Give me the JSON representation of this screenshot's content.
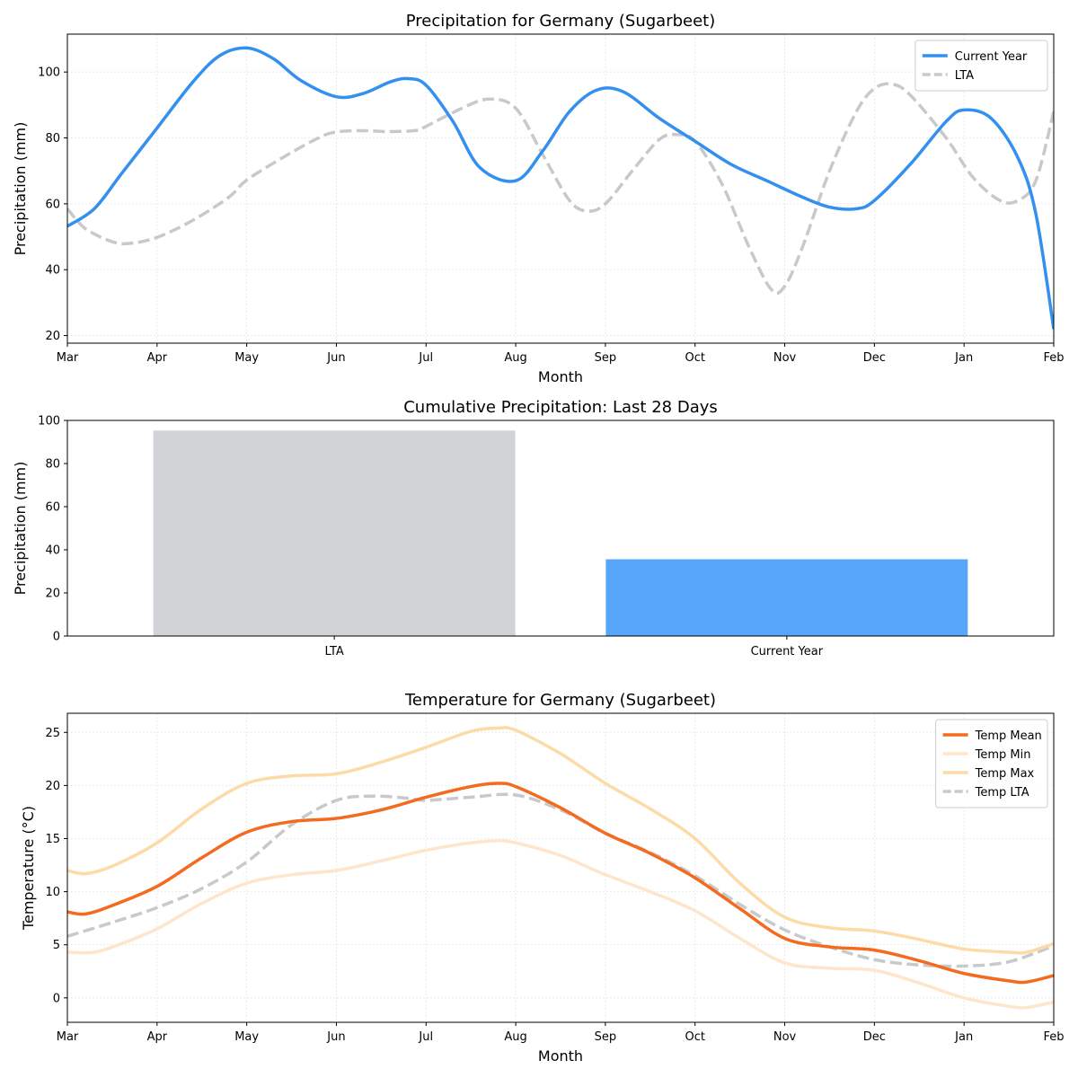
{
  "charts": [
    {
      "type": "line",
      "title": "Precipitation for Germany (Sugarbeet)",
      "xlabel": "Month",
      "ylabel": "Precipitation (mm)",
      "xticks": [
        "Mar",
        "Apr",
        "May",
        "Jun",
        "Jul",
        "Aug",
        "Sep",
        "Oct",
        "Nov",
        "Dec",
        "Jan",
        "Feb"
      ],
      "ylim": [
        17.7,
        111.5
      ],
      "yticks": [
        20,
        40,
        60,
        80,
        100
      ],
      "series": [
        {
          "name": "Current Year",
          "color": "#3390ee",
          "style": "solid",
          "points": [
            [
              0,
              53.2
            ],
            [
              0.3,
              58.5
            ],
            [
              0.6,
              69
            ],
            [
              1,
              83
            ],
            [
              1.4,
              97
            ],
            [
              1.7,
              105
            ],
            [
              2,
              107.3
            ],
            [
              2.3,
              104
            ],
            [
              2.6,
              97.5
            ],
            [
              3,
              92.5
            ],
            [
              3.3,
              93.5
            ],
            [
              3.6,
              97
            ],
            [
              3.8,
              98
            ],
            [
              4,
              96
            ],
            [
              4.3,
              85
            ],
            [
              4.6,
              71
            ],
            [
              5,
              67
            ],
            [
              5.3,
              76
            ],
            [
              5.6,
              88
            ],
            [
              5.9,
              94.5
            ],
            [
              6.2,
              94
            ],
            [
              6.6,
              86
            ],
            [
              7,
              79
            ],
            [
              7.4,
              72
            ],
            [
              7.8,
              67
            ],
            [
              8.2,
              62
            ],
            [
              8.5,
              59
            ],
            [
              8.8,
              58.5
            ],
            [
              9,
              61
            ],
            [
              9.4,
              72
            ],
            [
              9.8,
              85
            ],
            [
              10,
              88.5
            ],
            [
              10.3,
              86
            ],
            [
              10.6,
              74
            ],
            [
              10.8,
              57
            ],
            [
              11,
              22
            ]
          ]
        },
        {
          "name": "LTA",
          "color": "#c8c9ca",
          "style": "dashed",
          "points": [
            [
              0,
              58.5
            ],
            [
              0.2,
              52.5
            ],
            [
              0.5,
              48.5
            ],
            [
              0.7,
              48
            ],
            [
              1,
              49.8
            ],
            [
              1.4,
              55
            ],
            [
              1.8,
              62
            ],
            [
              2,
              67.2
            ],
            [
              2.4,
              74
            ],
            [
              2.8,
              80
            ],
            [
              3,
              81.8
            ],
            [
              3.3,
              82.2
            ],
            [
              3.6,
              81.9
            ],
            [
              3.9,
              82.3
            ],
            [
              4,
              83.5
            ],
            [
              4.4,
              89
            ],
            [
              4.7,
              91.8
            ],
            [
              5,
              89
            ],
            [
              5.3,
              75
            ],
            [
              5.6,
              61
            ],
            [
              5.8,
              57.8
            ],
            [
              6,
              60
            ],
            [
              6.3,
              70
            ],
            [
              6.6,
              79.5
            ],
            [
              6.8,
              81
            ],
            [
              7,
              79
            ],
            [
              7.3,
              66
            ],
            [
              7.6,
              47
            ],
            [
              7.85,
              34
            ],
            [
              8,
              35
            ],
            [
              8.2,
              47
            ],
            [
              8.5,
              70
            ],
            [
              8.8,
              88
            ],
            [
              9,
              95
            ],
            [
              9.2,
              96.3
            ],
            [
              9.4,
              93
            ],
            [
              9.8,
              80
            ],
            [
              10.1,
              68
            ],
            [
              10.4,
              61
            ],
            [
              10.6,
              61
            ],
            [
              10.8,
              67
            ],
            [
              11,
              88
            ]
          ]
        }
      ],
      "legend": {
        "position": "upper-right",
        "entries": [
          "Current Year",
          "LTA"
        ]
      }
    },
    {
      "type": "bar",
      "title": "Cumulative Precipitation: Last 28 Days",
      "xlabel": "",
      "ylabel": "Precipitation (mm)",
      "categories": [
        "LTA",
        "Current Year"
      ],
      "values": [
        95.3,
        35.6
      ],
      "colors": [
        "#d0d4d7",
        "#58a6f9"
      ],
      "ylim": [
        0,
        100
      ],
      "yticks": [
        0,
        20,
        40,
        60,
        80,
        100
      ]
    },
    {
      "type": "line",
      "title": "Temperature for Germany (Sugarbeet)",
      "xlabel": "Month",
      "ylabel": "Temperature (°C)",
      "xticks": [
        "Mar",
        "Apr",
        "May",
        "Jun",
        "Jul",
        "Aug",
        "Sep",
        "Oct",
        "Nov",
        "Dec",
        "Jan",
        "Feb"
      ],
      "ylim": [
        -2.3,
        26.8
      ],
      "yticks": [
        0,
        5,
        10,
        15,
        20,
        25
      ],
      "series": [
        {
          "name": "Temp Mean",
          "color": "#f46a1f",
          "style": "solid",
          "points": [
            [
              0,
              8.1
            ],
            [
              0.2,
              7.9
            ],
            [
              0.5,
              8.7
            ],
            [
              1,
              10.5
            ],
            [
              1.5,
              13.2
            ],
            [
              2,
              15.6
            ],
            [
              2.5,
              16.6
            ],
            [
              3,
              16.9
            ],
            [
              3.5,
              17.7
            ],
            [
              4,
              18.9
            ],
            [
              4.5,
              19.9
            ],
            [
              4.8,
              20.2
            ],
            [
              5,
              19.9
            ],
            [
              5.5,
              17.9
            ],
            [
              6,
              15.5
            ],
            [
              6.5,
              13.6
            ],
            [
              7,
              11.3
            ],
            [
              7.5,
              8.4
            ],
            [
              8,
              5.6
            ],
            [
              8.5,
              4.8
            ],
            [
              9,
              4.5
            ],
            [
              9.5,
              3.5
            ],
            [
              10,
              2.3
            ],
            [
              10.5,
              1.6
            ],
            [
              10.7,
              1.5
            ],
            [
              11,
              2.1
            ]
          ]
        },
        {
          "name": "Temp Min",
          "color": "#fee5cc",
          "style": "solid",
          "points": [
            [
              0,
              4.3
            ],
            [
              0.3,
              4.3
            ],
            [
              0.6,
              5.1
            ],
            [
              1,
              6.5
            ],
            [
              1.5,
              8.9
            ],
            [
              2,
              10.8
            ],
            [
              2.5,
              11.6
            ],
            [
              3,
              12
            ],
            [
              3.5,
              12.9
            ],
            [
              4,
              13.9
            ],
            [
              4.5,
              14.6
            ],
            [
              4.8,
              14.8
            ],
            [
              5,
              14.6
            ],
            [
              5.5,
              13.4
            ],
            [
              6,
              11.6
            ],
            [
              6.5,
              10
            ],
            [
              7,
              8.2
            ],
            [
              7.5,
              5.6
            ],
            [
              8,
              3.3
            ],
            [
              8.5,
              2.8
            ],
            [
              9,
              2.6
            ],
            [
              9.5,
              1.4
            ],
            [
              10,
              0
            ],
            [
              10.5,
              -0.8
            ],
            [
              10.7,
              -0.9
            ],
            [
              11,
              -0.4
            ]
          ]
        },
        {
          "name": "Temp Max",
          "color": "#fcdba8",
          "style": "solid",
          "points": [
            [
              0,
              12
            ],
            [
              0.2,
              11.7
            ],
            [
              0.5,
              12.4
            ],
            [
              1,
              14.6
            ],
            [
              1.5,
              17.8
            ],
            [
              2,
              20.2
            ],
            [
              2.5,
              20.9
            ],
            [
              3,
              21.1
            ],
            [
              3.5,
              22.2
            ],
            [
              4,
              23.6
            ],
            [
              4.5,
              25.1
            ],
            [
              4.8,
              25.4
            ],
            [
              5,
              25.2
            ],
            [
              5.5,
              23
            ],
            [
              6,
              20.2
            ],
            [
              6.5,
              17.8
            ],
            [
              7,
              15
            ],
            [
              7.5,
              10.8
            ],
            [
              8,
              7.6
            ],
            [
              8.5,
              6.6
            ],
            [
              9,
              6.3
            ],
            [
              9.5,
              5.5
            ],
            [
              10,
              4.6
            ],
            [
              10.5,
              4.3
            ],
            [
              10.7,
              4.3
            ],
            [
              11,
              5.1
            ]
          ]
        },
        {
          "name": "Temp LTA",
          "color": "#c8c9ca",
          "style": "dashed",
          "points": [
            [
              0,
              5.8
            ],
            [
              0.5,
              7.1
            ],
            [
              1,
              8.5
            ],
            [
              1.5,
              10.3
            ],
            [
              2,
              12.8
            ],
            [
              2.5,
              16.3
            ],
            [
              3,
              18.6
            ],
            [
              3.4,
              19
            ],
            [
              3.8,
              18.8
            ],
            [
              4,
              18.6
            ],
            [
              4.5,
              18.9
            ],
            [
              5,
              19.1
            ],
            [
              5.5,
              17.7
            ],
            [
              6,
              15.5
            ],
            [
              6.5,
              13.7
            ],
            [
              7,
              11.5
            ],
            [
              7.5,
              8.8
            ],
            [
              8,
              6.4
            ],
            [
              8.5,
              4.8
            ],
            [
              9,
              3.6
            ],
            [
              9.5,
              3.1
            ],
            [
              10,
              3
            ],
            [
              10.5,
              3.4
            ],
            [
              11,
              4.9
            ]
          ]
        }
      ],
      "legend": {
        "position": "upper-right",
        "entries": [
          "Temp Mean",
          "Temp Min",
          "Temp Max",
          "Temp LTA"
        ]
      }
    }
  ]
}
